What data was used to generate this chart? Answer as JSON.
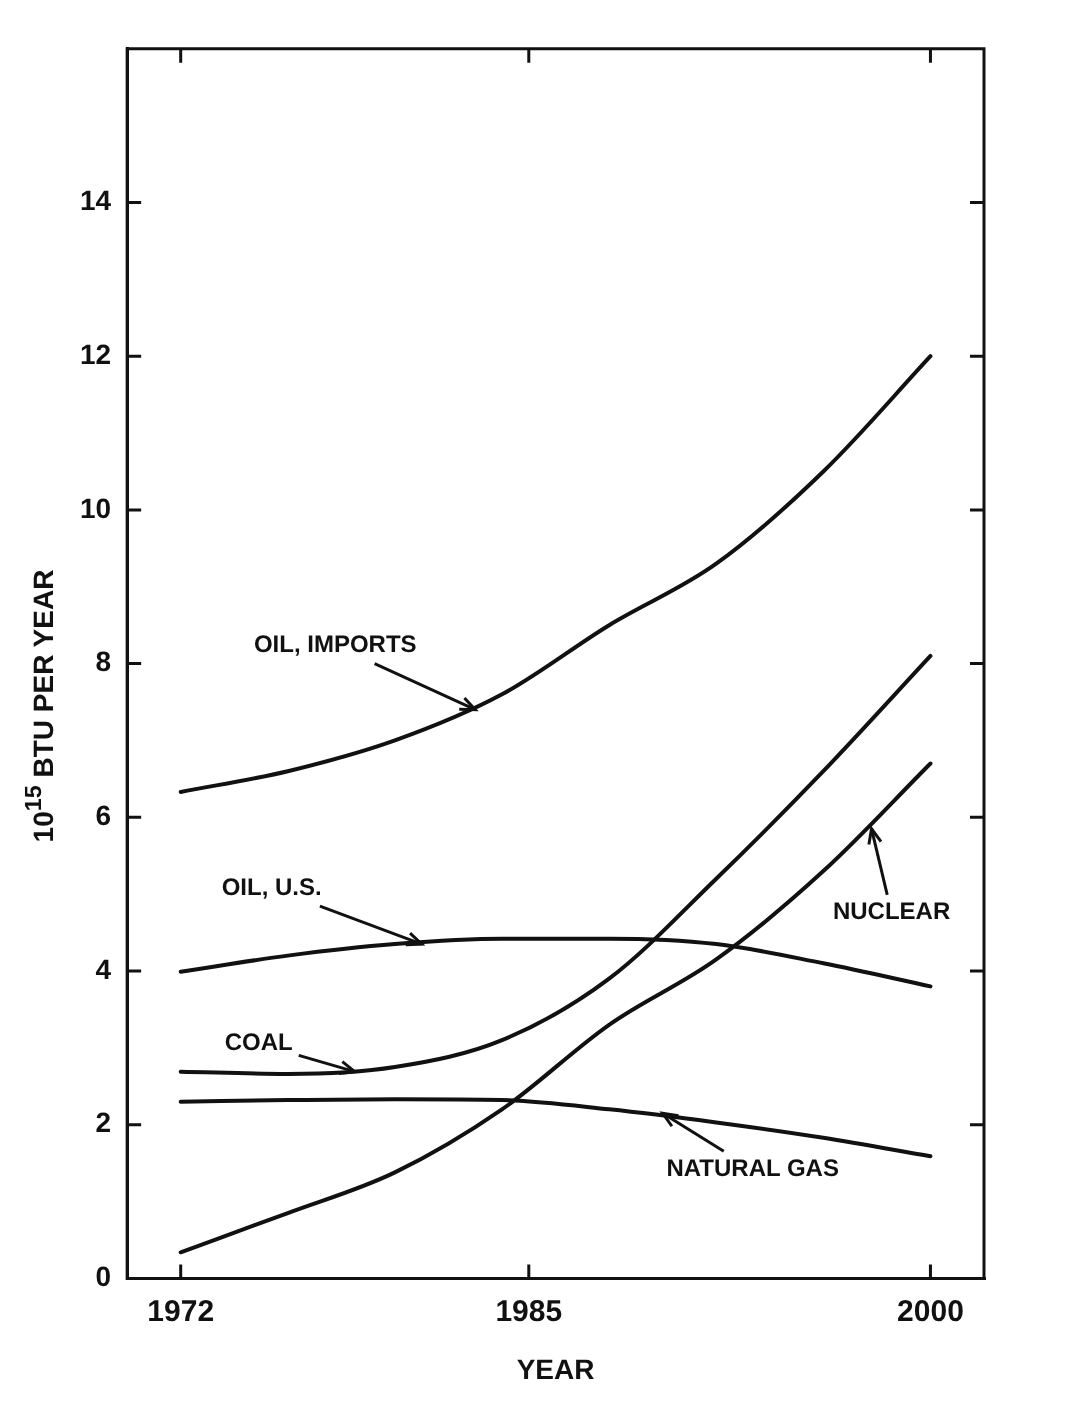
{
  "chart_data": {
    "type": "line",
    "xlabel": "YEAR",
    "ylabel": "10$^{15}$ BTU PER YEAR",
    "xlim": [
      1970,
      2002
    ],
    "xticks": [
      1972,
      1985,
      2000
    ],
    "ylim": [
      0,
      16
    ],
    "yticks": [
      0,
      2,
      4,
      6,
      8,
      10,
      12,
      14
    ],
    "x": [
      1972,
      1976,
      1980,
      1984,
      1988,
      1992,
      1996,
      2000
    ],
    "series": [
      {
        "color": "#111111",
        "values": [
          6.33,
          6.6,
          7.0,
          7.6,
          8.5,
          9.3,
          10.5,
          12.0
        ]
      },
      {
        "color": "#111111",
        "values": [
          3.99,
          4.2,
          4.35,
          4.42,
          4.42,
          4.35,
          4.1,
          3.8
        ]
      },
      {
        "color": "#111111",
        "values": [
          2.69,
          2.66,
          2.75,
          3.1,
          3.9,
          5.2,
          6.6,
          8.1
        ]
      },
      {
        "color": "#111111",
        "values": [
          2.3,
          2.32,
          2.33,
          2.32,
          2.2,
          2.03,
          1.83,
          1.59
        ]
      },
      {
        "color": "#111111",
        "values": [
          0.34,
          0.85,
          1.38,
          2.2,
          3.3,
          4.15,
          5.3,
          6.7
        ]
      }
    ],
    "annotations": [
      {
        "text": "OIL, IMPORTS",
        "x": 1983,
        "y": 7.4
      },
      {
        "text": "OIL, U.S.",
        "x": 1981,
        "y": 4.35
      },
      {
        "text": "COAL",
        "x": 1978.5,
        "y": 2.69
      },
      {
        "text": "NATURAL GAS",
        "x": 1990,
        "y": 2.15
      },
      {
        "text": "NUCLEAR",
        "x": 1997.8,
        "y": 5.85
      }
    ],
    "grid": false,
    "legend": false,
    "marker": "none",
    "line_style": "solid"
  }
}
